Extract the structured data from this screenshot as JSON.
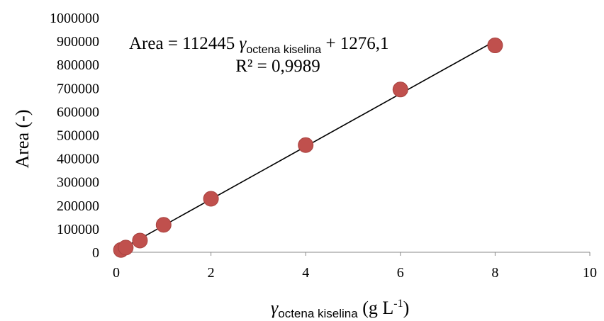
{
  "chart_data": {
    "type": "scatter",
    "x": [
      0.1,
      0.2,
      0.5,
      1,
      2,
      4,
      6,
      8
    ],
    "y": [
      10000,
      20000,
      50000,
      117000,
      228000,
      457000,
      694000,
      882000
    ],
    "xlim": [
      0,
      10
    ],
    "ylim": [
      0,
      1000000
    ],
    "x_ticks": [
      "0",
      "2",
      "4",
      "6",
      "8",
      "10"
    ],
    "y_ticks": [
      "0",
      "100000",
      "200000",
      "300000",
      "400000",
      "500000",
      "600000",
      "700000",
      "800000",
      "900000",
      "1000000"
    ],
    "ylabel": "Area (-)",
    "xlabel": {
      "symbol": "γ",
      "subscript": "octena kiselina",
      "unit_open": " (g L",
      "unit_sup": "-1",
      "unit_close": ")"
    },
    "trendline": {
      "slope": 112445,
      "intercept": 1276.1,
      "x_range": [
        0.1,
        8
      ],
      "equation": {
        "lhs": "Area = 112445 ",
        "symbol": "γ",
        "subscript": "octena kiselina",
        "rhs": " + 1276,1"
      },
      "r2": "R² = 0,9989"
    },
    "grid": false,
    "legend": "none",
    "marker_color": "#c0504d",
    "marker_edge": "#a8423f",
    "line_color": "#000000"
  }
}
